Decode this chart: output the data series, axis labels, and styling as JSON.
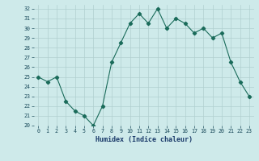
{
  "x": [
    0,
    1,
    2,
    3,
    4,
    5,
    6,
    7,
    8,
    9,
    10,
    11,
    12,
    13,
    14,
    15,
    16,
    17,
    18,
    19,
    20,
    21,
    22,
    23
  ],
  "y": [
    25,
    24.5,
    25,
    22.5,
    21.5,
    21,
    20,
    22,
    26.5,
    28.5,
    30.5,
    31.5,
    30.5,
    32,
    30,
    31,
    30.5,
    29.5,
    30,
    29,
    29.5,
    26.5,
    24.5,
    23
  ],
  "line_color": "#1a6b5a",
  "marker": "D",
  "marker_size": 2.2,
  "bg_color": "#ceeaea",
  "grid_color": "#b0cfcf",
  "xlabel": "Humidex (Indice chaleur)",
  "ylim": [
    20,
    32.4
  ],
  "yticks": [
    20,
    21,
    22,
    23,
    24,
    25,
    26,
    27,
    28,
    29,
    30,
    31,
    32
  ],
  "xticks": [
    0,
    1,
    2,
    3,
    4,
    5,
    6,
    7,
    8,
    9,
    10,
    11,
    12,
    13,
    14,
    15,
    16,
    17,
    18,
    19,
    20,
    21,
    22,
    23
  ],
  "xlim": [
    -0.5,
    23.5
  ]
}
